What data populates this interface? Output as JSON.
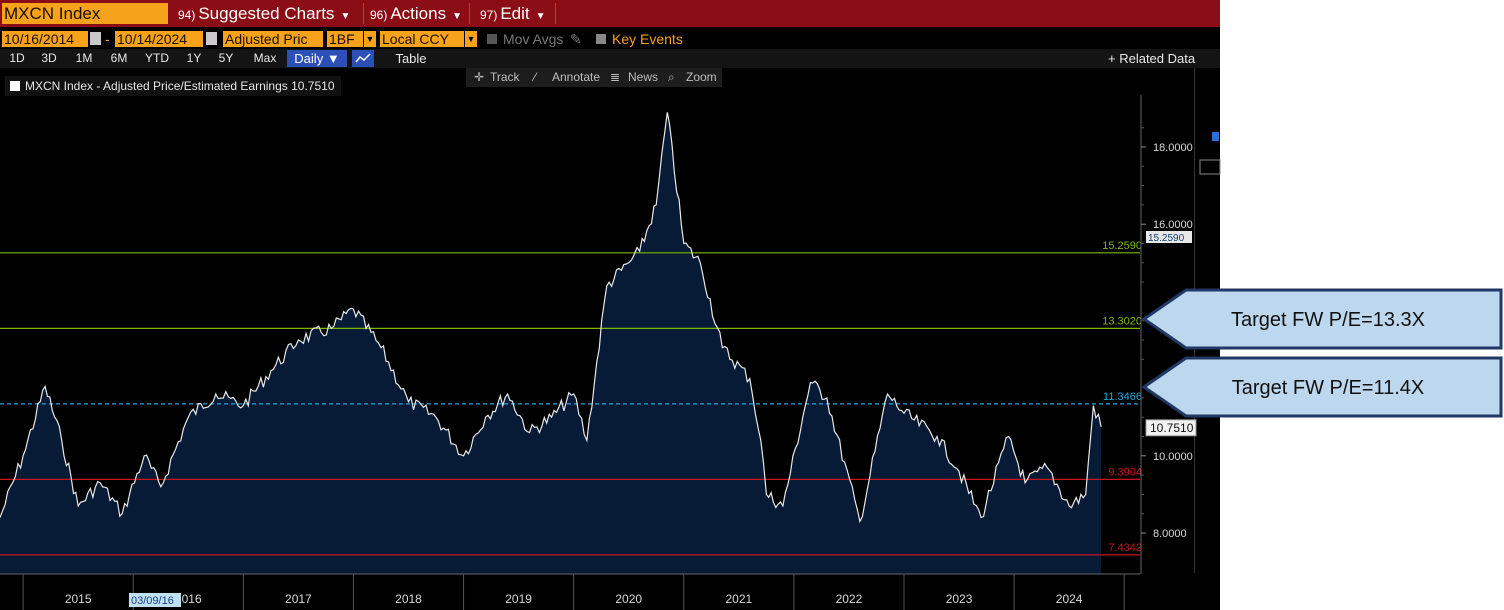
{
  "toolbar": {
    "ticker": "MXCN Index",
    "menu": [
      {
        "num": "94)",
        "label": "Suggested Charts"
      },
      {
        "num": "96)",
        "label": "Actions"
      },
      {
        "num": "97)",
        "label": "Edit"
      }
    ]
  },
  "settings": {
    "start_date": "10/16/2014",
    "date_separator": "-",
    "end_date": "10/14/2024",
    "field": "Adjusted Pric",
    "period": "1BF",
    "currency": "Local CCY",
    "mov_avgs": "Mov Avgs",
    "key_events": "Key Events"
  },
  "ranges": [
    "1D",
    "3D",
    "1M",
    "6M",
    "YTD",
    "1Y",
    "5Y",
    "Max"
  ],
  "frequency": "Daily",
  "table_label": "Table",
  "related_data": "+ Related Data",
  "tools": [
    "Track",
    "Annotate",
    "News",
    "Zoom"
  ],
  "legend": "MXCN Index - Adjusted Price/Estimated Earnings 10.7510",
  "colors": {
    "accent": "#f7a21b",
    "topbar": "#8b0d15",
    "area_fill": "#071a36",
    "line": "#e8e8e8",
    "green_level": "#7ab800",
    "red_level": "#c8161c",
    "dashed_level": "#1ea7e1"
  },
  "callouts": [
    {
      "text": "Target FW P/E=13.3X"
    },
    {
      "text": "Target FW P/E=11.4X"
    }
  ],
  "chart_data": {
    "type": "area",
    "title": "MXCN Index - Adjusted Price/Estimated Earnings 10.7510",
    "ylim": [
      7.0,
      19.0
    ],
    "y_ticks": [
      8.0,
      10.0,
      16.0,
      18.0
    ],
    "y_tick_labels": [
      "8.0000",
      "10.0000",
      "16.0000",
      "18.0000"
    ],
    "x_labels": [
      "2015",
      "2016",
      "2017",
      "2018",
      "2019",
      "2020",
      "2021",
      "2022",
      "2023",
      "2024"
    ],
    "x_label_marker": "03/09/16",
    "current_value": "10.7510",
    "levels": [
      {
        "value": 15.259,
        "label": "15.2590",
        "style": "green"
      },
      {
        "value": 13.302,
        "label": "13.3020",
        "style": "green"
      },
      {
        "value": 11.346,
        "label": "11.3466",
        "style": "dashed"
      },
      {
        "value": 9.39,
        "label": "9.3904",
        "style": "red"
      },
      {
        "value": 7.434,
        "label": "7.4342",
        "style": "red"
      }
    ],
    "series": [
      {
        "x": [
          2014.79,
          2015.0,
          2015.2,
          2015.35,
          2015.5,
          2015.7,
          2015.9,
          2016.1,
          2016.25,
          2016.5,
          2016.75,
          2017.0,
          2017.25,
          2017.5,
          2017.8,
          2018.0,
          2018.25,
          2018.5,
          2018.75,
          2019.0,
          2019.2,
          2019.4,
          2019.6,
          2019.8,
          2020.0,
          2020.12,
          2020.3,
          2020.5,
          2020.6,
          2020.75,
          2020.85,
          2021.0,
          2021.15,
          2021.35,
          2021.6,
          2021.7,
          2021.75,
          2021.9,
          2022.15,
          2022.3,
          2022.6,
          2022.85,
          2023.0,
          2023.3,
          2023.5,
          2023.7,
          2023.95,
          2024.1,
          2024.3,
          2024.5,
          2024.65,
          2024.72,
          2024.79
        ],
        "values": [
          8.4,
          10.0,
          11.8,
          10.4,
          8.7,
          9.3,
          8.5,
          10.0,
          9.2,
          11.0,
          11.6,
          11.3,
          12.2,
          13.0,
          13.3,
          13.8,
          12.8,
          11.4,
          11.0,
          10.0,
          11.0,
          11.6,
          10.6,
          11.0,
          11.6,
          10.4,
          14.4,
          15.0,
          15.3,
          16.5,
          18.9,
          15.5,
          15.0,
          12.8,
          12.0,
          10.4,
          9.0,
          8.7,
          11.9,
          11.5,
          8.3,
          11.6,
          11.1,
          10.5,
          9.6,
          8.4,
          10.5,
          9.3,
          9.7,
          8.7,
          9.0,
          11.3,
          10.75
        ]
      }
    ]
  }
}
